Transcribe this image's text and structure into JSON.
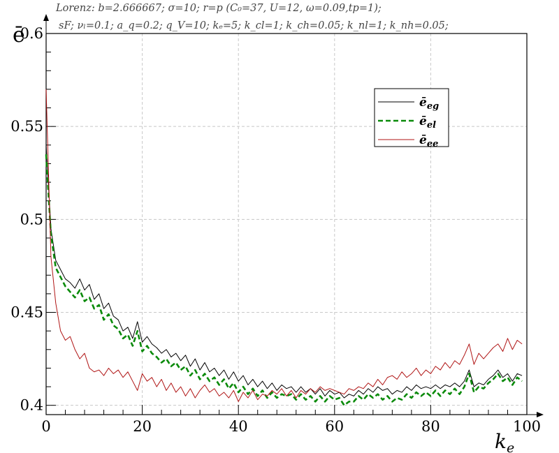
{
  "chart_data": {
    "type": "line",
    "title_line1": "Lorenz: b=2.666667; σ=10; r=p (C₀=37, U=12, ω=0.09,tp=1);",
    "title_line2": "sF; νₗ=0.1; a_q=0.2; q_V=10; kₑ=5; k_cl=1; k_ch=0.05; k_nl=1; k_nh=0.05;",
    "xlabel": "k",
    "xlabel_sub": "e",
    "ylabel": "ē",
    "xlim": [
      0,
      100
    ],
    "ylim": [
      0.395,
      0.6
    ],
    "xticks": [
      0,
      20,
      40,
      60,
      80,
      100
    ],
    "yticks": [
      0.4,
      0.45,
      0.5,
      0.55,
      0.6
    ],
    "ytick_labels": [
      "0.4",
      "0.45",
      "0.5",
      "0.55",
      "0.6"
    ],
    "grid": true,
    "legend_position": "top-right",
    "x": [
      0,
      1,
      2,
      3,
      4,
      5,
      6,
      7,
      8,
      9,
      10,
      11,
      12,
      13,
      14,
      15,
      16,
      17,
      18,
      19,
      20,
      21,
      22,
      23,
      24,
      25,
      26,
      27,
      28,
      29,
      30,
      31,
      32,
      33,
      34,
      35,
      36,
      37,
      38,
      39,
      40,
      41,
      42,
      43,
      44,
      45,
      46,
      47,
      48,
      49,
      50,
      51,
      52,
      53,
      54,
      55,
      56,
      57,
      58,
      59,
      60,
      61,
      62,
      63,
      64,
      65,
      66,
      67,
      68,
      69,
      70,
      71,
      72,
      73,
      74,
      75,
      76,
      77,
      78,
      79,
      80,
      81,
      82,
      83,
      84,
      85,
      86,
      87,
      88,
      89,
      90,
      91,
      92,
      93,
      94,
      95,
      96,
      97,
      98,
      99
    ],
    "series": [
      {
        "name": "ē",
        "name_sub": "eg",
        "color": "#000000",
        "dash": "solid",
        "values": [
          0.54,
          0.495,
          0.478,
          0.473,
          0.468,
          0.466,
          0.463,
          0.468,
          0.462,
          0.465,
          0.457,
          0.46,
          0.452,
          0.455,
          0.448,
          0.446,
          0.44,
          0.442,
          0.436,
          0.445,
          0.434,
          0.437,
          0.433,
          0.431,
          0.428,
          0.43,
          0.426,
          0.428,
          0.424,
          0.427,
          0.421,
          0.425,
          0.419,
          0.423,
          0.418,
          0.42,
          0.416,
          0.419,
          0.414,
          0.418,
          0.413,
          0.416,
          0.411,
          0.414,
          0.41,
          0.413,
          0.409,
          0.412,
          0.408,
          0.411,
          0.409,
          0.41,
          0.407,
          0.41,
          0.407,
          0.409,
          0.406,
          0.409,
          0.405,
          0.408,
          0.406,
          0.407,
          0.404,
          0.406,
          0.405,
          0.408,
          0.406,
          0.409,
          0.407,
          0.41,
          0.408,
          0.409,
          0.406,
          0.408,
          0.407,
          0.41,
          0.408,
          0.411,
          0.409,
          0.41,
          0.409,
          0.411,
          0.409,
          0.411,
          0.41,
          0.412,
          0.41,
          0.413,
          0.419,
          0.41,
          0.412,
          0.411,
          0.414,
          0.416,
          0.419,
          0.415,
          0.417,
          0.413,
          0.417,
          0.416
        ]
      },
      {
        "name": "ē",
        "name_sub": "el",
        "color": "#0a8a0a",
        "dash": "dashed",
        "values": [
          0.535,
          0.492,
          0.474,
          0.469,
          0.464,
          0.461,
          0.458,
          0.462,
          0.456,
          0.458,
          0.452,
          0.454,
          0.446,
          0.449,
          0.443,
          0.441,
          0.436,
          0.438,
          0.432,
          0.44,
          0.429,
          0.432,
          0.428,
          0.426,
          0.423,
          0.425,
          0.421,
          0.423,
          0.419,
          0.421,
          0.416,
          0.419,
          0.414,
          0.417,
          0.413,
          0.415,
          0.411,
          0.414,
          0.409,
          0.412,
          0.407,
          0.41,
          0.406,
          0.409,
          0.405,
          0.408,
          0.404,
          0.407,
          0.404,
          0.406,
          0.405,
          0.406,
          0.403,
          0.406,
          0.403,
          0.405,
          0.402,
          0.405,
          0.402,
          0.405,
          0.403,
          0.404,
          0.4,
          0.402,
          0.402,
          0.405,
          0.403,
          0.406,
          0.404,
          0.406,
          0.403,
          0.405,
          0.402,
          0.404,
          0.403,
          0.406,
          0.404,
          0.407,
          0.405,
          0.407,
          0.405,
          0.408,
          0.405,
          0.408,
          0.406,
          0.409,
          0.406,
          0.41,
          0.417,
          0.407,
          0.41,
          0.409,
          0.412,
          0.414,
          0.417,
          0.413,
          0.415,
          0.411,
          0.415,
          0.413
        ]
      },
      {
        "name": "ē",
        "name_sub": "ee",
        "color": "#b01515",
        "dash": "solid",
        "values": [
          0.57,
          0.48,
          0.455,
          0.44,
          0.435,
          0.437,
          0.43,
          0.425,
          0.428,
          0.42,
          0.418,
          0.419,
          0.416,
          0.42,
          0.417,
          0.419,
          0.415,
          0.418,
          0.413,
          0.408,
          0.417,
          0.413,
          0.415,
          0.41,
          0.414,
          0.408,
          0.412,
          0.407,
          0.41,
          0.405,
          0.409,
          0.404,
          0.408,
          0.411,
          0.407,
          0.409,
          0.405,
          0.407,
          0.404,
          0.408,
          0.402,
          0.407,
          0.404,
          0.408,
          0.403,
          0.406,
          0.405,
          0.408,
          0.406,
          0.409,
          0.405,
          0.408,
          0.404,
          0.408,
          0.406,
          0.409,
          0.407,
          0.41,
          0.408,
          0.409,
          0.408,
          0.407,
          0.406,
          0.409,
          0.408,
          0.41,
          0.409,
          0.412,
          0.41,
          0.414,
          0.411,
          0.415,
          0.416,
          0.414,
          0.418,
          0.415,
          0.417,
          0.42,
          0.416,
          0.419,
          0.417,
          0.421,
          0.419,
          0.423,
          0.42,
          0.424,
          0.422,
          0.427,
          0.433,
          0.422,
          0.428,
          0.425,
          0.428,
          0.431,
          0.433,
          0.429,
          0.436,
          0.43,
          0.435,
          0.433
        ]
      }
    ]
  }
}
